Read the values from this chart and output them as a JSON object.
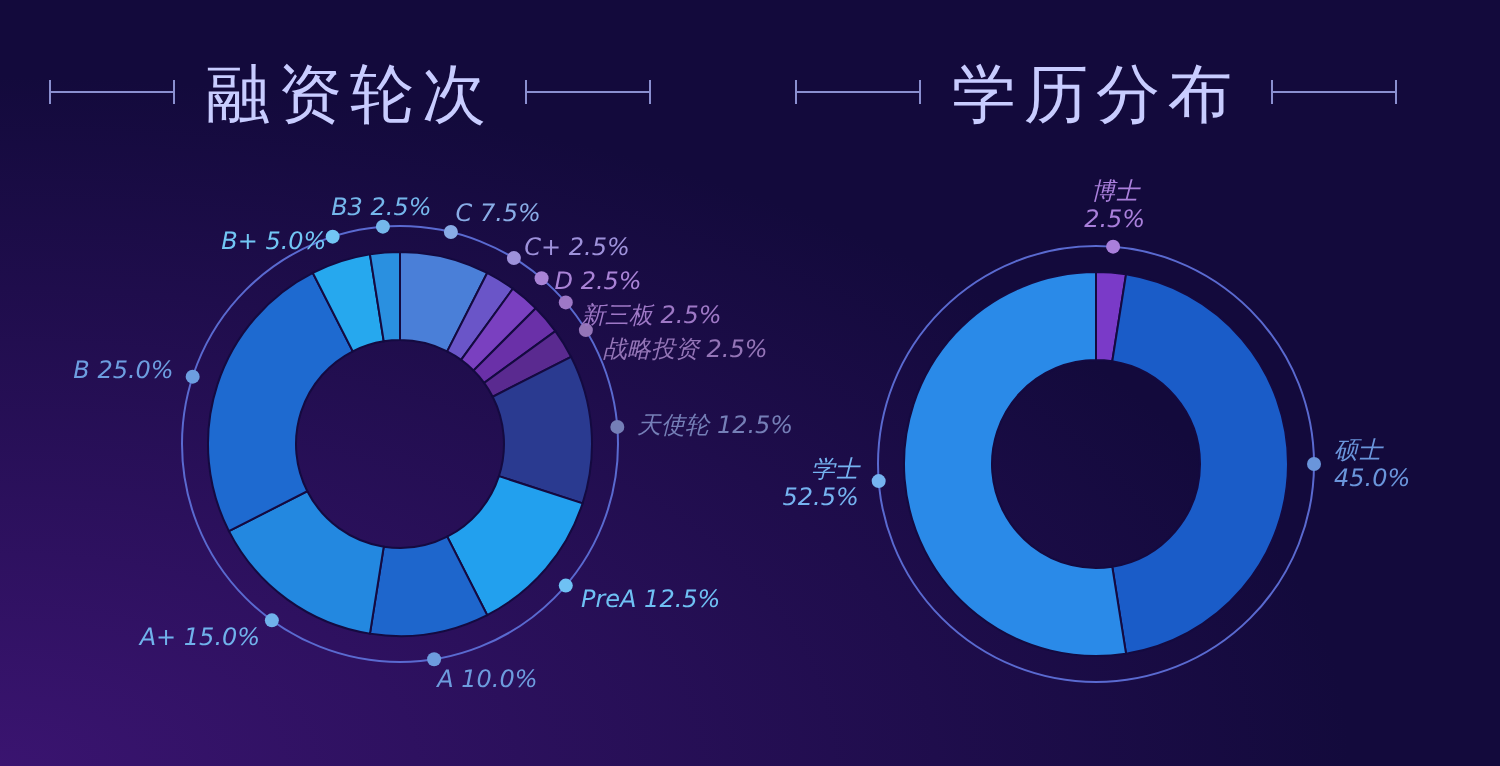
{
  "chart_data": [
    {
      "type": "donut",
      "title": "融资轮次",
      "categories": [
        "C",
        "C+",
        "D",
        "新三板",
        "战略投资",
        "天使轮",
        "PreA",
        "A",
        "A+",
        "B",
        "B+",
        "B3"
      ],
      "values": [
        7.5,
        2.5,
        2.5,
        2.5,
        2.5,
        12.5,
        12.5,
        10.0,
        15.0,
        25.0,
        5.0,
        2.5
      ],
      "value_labels": [
        "7.5%",
        "2.5%",
        "2.5%",
        "2.5%",
        "2.5%",
        "12.5%",
        "12.5%",
        "10.0%",
        "15.0%",
        "25.0%",
        "5.0%",
        "2.5%"
      ],
      "colors": [
        "#4a7fd8",
        "#6a55c8",
        "#7a40c0",
        "#6a30a8",
        "#5a2a90",
        "#2a3a90",
        "#22a0ee",
        "#1e66cc",
        "#2388e0",
        "#1e6ad0",
        "#26a8ee",
        "#2a90e0"
      ]
    },
    {
      "type": "donut",
      "title": "学历分布",
      "categories": [
        "博士",
        "硕士",
        "学士"
      ],
      "values": [
        2.5,
        45.0,
        52.5
      ],
      "value_labels": [
        "2.5%",
        "45.0%",
        "52.5%"
      ],
      "colors": [
        "#7a3ac8",
        "#1a5cc8",
        "#2a8ae8"
      ]
    }
  ]
}
